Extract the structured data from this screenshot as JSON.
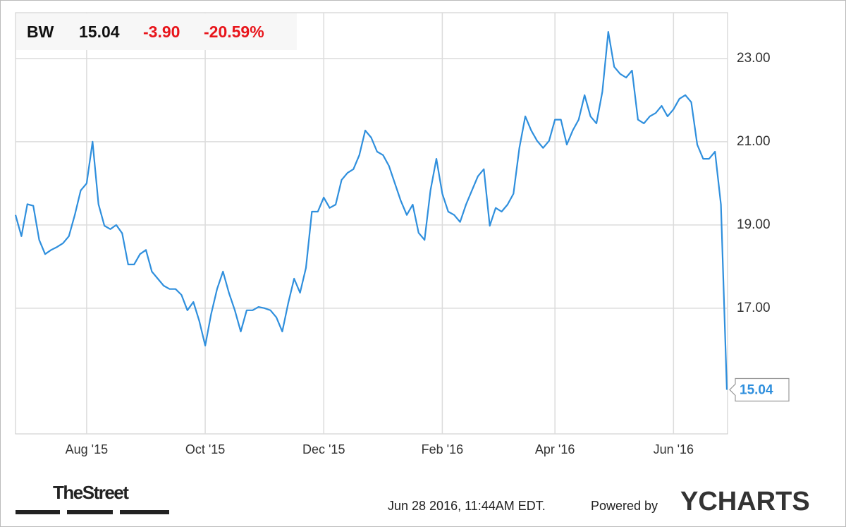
{
  "chart_data": {
    "type": "line",
    "ticker": "BW",
    "price": "15.04",
    "change": "-3.90",
    "change_pct": "-20.59%",
    "categories": [
      null,
      null,
      null,
      null,
      null,
      null,
      null,
      null,
      null,
      null,
      null,
      null,
      "Aug '15",
      null,
      null,
      null,
      null,
      null,
      null,
      null,
      null,
      null,
      null,
      null,
      null,
      null,
      null,
      null,
      null,
      null,
      null,
      null,
      "Oct '15",
      null,
      null,
      null,
      null,
      null,
      null,
      null,
      null,
      null,
      null,
      null,
      null,
      null,
      null,
      null,
      null,
      null,
      null,
      null,
      "Dec '15",
      null,
      null,
      null,
      null,
      null,
      null,
      null,
      null,
      null,
      null,
      null,
      null,
      null,
      null,
      null,
      null,
      null,
      null,
      null,
      "Feb '16",
      null,
      null,
      null,
      null,
      null,
      null,
      null,
      null,
      null,
      null,
      null,
      null,
      null,
      null,
      null,
      null,
      null,
      null,
      "Apr '16",
      null,
      null,
      null,
      null,
      null,
      null,
      null,
      null,
      null,
      null,
      null,
      null,
      null,
      null,
      null,
      null,
      null,
      null,
      null,
      "Jun '16",
      null,
      null,
      null,
      null,
      null,
      null,
      null,
      null,
      null
    ],
    "series": [
      {
        "name": "BW",
        "color": "#2f8fdd",
        "values": [
          19.24,
          18.73,
          19.5,
          19.46,
          18.64,
          18.3,
          18.4,
          18.47,
          18.56,
          18.73,
          19.24,
          19.83,
          20.0,
          21.0,
          19.5,
          18.98,
          18.9,
          19.0,
          18.8,
          18.05,
          18.05,
          18.3,
          18.4,
          17.88,
          17.71,
          17.54,
          17.46,
          17.46,
          17.32,
          16.95,
          17.15,
          16.69,
          16.1,
          16.86,
          17.46,
          17.88,
          17.37,
          16.95,
          16.44,
          16.95,
          16.95,
          17.03,
          17.0,
          16.95,
          16.78,
          16.44,
          17.12,
          17.71,
          17.37,
          17.97,
          19.32,
          19.32,
          19.66,
          19.41,
          19.49,
          20.08,
          20.25,
          20.34,
          20.68,
          21.27,
          21.1,
          20.76,
          20.68,
          20.42,
          20.0,
          19.58,
          19.24,
          19.49,
          18.81,
          18.64,
          19.83,
          20.59,
          19.75,
          19.32,
          19.24,
          19.07,
          19.49,
          19.83,
          20.17,
          20.34,
          18.98,
          19.41,
          19.32,
          19.49,
          19.75,
          20.85,
          21.61,
          21.27,
          21.02,
          20.85,
          21.02,
          21.53,
          21.53,
          20.93,
          21.27,
          21.53,
          22.12,
          21.61,
          21.44,
          22.2,
          23.64,
          22.8,
          22.63,
          22.54,
          22.71,
          21.53,
          21.44,
          21.61,
          21.69,
          21.86,
          21.61,
          21.78,
          22.03,
          22.12,
          21.95,
          20.93,
          20.59,
          20.59,
          20.76,
          19.49,
          15.04
        ]
      }
    ],
    "ylim": [
      13.98,
      24.1
    ],
    "yticks": [
      {
        "value": 17,
        "label": "17.00"
      },
      {
        "value": 19,
        "label": "19.00"
      },
      {
        "value": 21,
        "label": "21.00"
      },
      {
        "value": 23,
        "label": "23.00"
      }
    ],
    "grid": true
  },
  "footer": {
    "brand": "TheStreet",
    "timestamp": "Jun 28 2016, 11:44AM EDT.",
    "powered": "Powered by",
    "provider": "YCHARTS"
  }
}
